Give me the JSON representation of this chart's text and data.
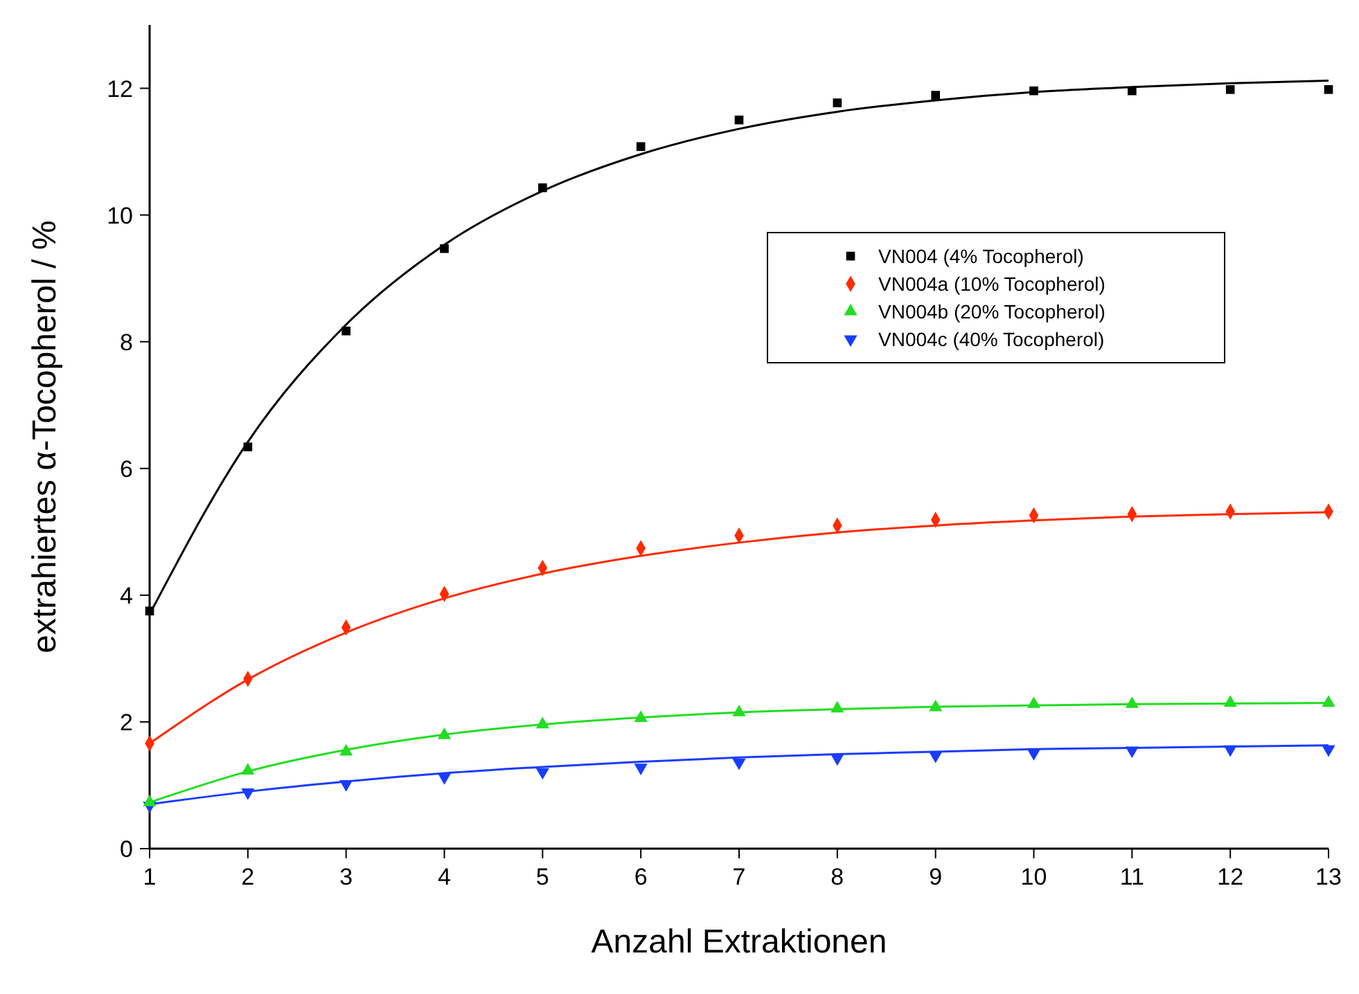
{
  "chart_data": {
    "type": "scatter",
    "xlabel": "Anzahl Extraktionen",
    "ylabel": "extrahiertes α-Tocopherol / %",
    "x": [
      1,
      2,
      3,
      4,
      5,
      6,
      7,
      8,
      9,
      10,
      11,
      12,
      13
    ],
    "xlim": [
      1,
      13
    ],
    "xticks": [
      1,
      2,
      3,
      4,
      5,
      6,
      7,
      8,
      9,
      10,
      11,
      12,
      13
    ],
    "ylim": [
      0,
      13
    ],
    "yticks": [
      0,
      2,
      4,
      6,
      8,
      10,
      12
    ],
    "grid": false,
    "legend": "top right",
    "series": [
      {
        "name": "VN004 (4% Tocopherol)",
        "color": "#000000",
        "marker": "square",
        "values": [
          3.75,
          6.34,
          8.17,
          9.47,
          10.43,
          11.08,
          11.5,
          11.77,
          11.89,
          11.96,
          11.96,
          11.98,
          11.98
        ]
      },
      {
        "name": "VN004a (10% Tocopherol)",
        "color": "#ff2a00",
        "marker": "diamond",
        "values": [
          1.66,
          2.68,
          3.49,
          4.02,
          4.43,
          4.74,
          4.94,
          5.1,
          5.19,
          5.26,
          5.28,
          5.32,
          5.32
        ]
      },
      {
        "name": "VN004b (20% Tocopherol)",
        "color": "#22dd22",
        "marker": "triangle",
        "values": [
          0.73,
          1.23,
          1.53,
          1.79,
          1.96,
          2.06,
          2.15,
          2.21,
          2.23,
          2.28,
          2.28,
          2.3,
          2.3
        ]
      },
      {
        "name": "VN004c (40% Tocopherol)",
        "color": "#1a3cff",
        "marker": "triangle-down",
        "values": [
          0.68,
          0.89,
          1.02,
          1.13,
          1.21,
          1.28,
          1.36,
          1.43,
          1.47,
          1.51,
          1.55,
          1.57,
          1.57
        ]
      },
      {
        "type": "line",
        "color": "#000000",
        "values": [
          3.7,
          6.42,
          8.27,
          9.53,
          10.38,
          10.96,
          11.36,
          11.63,
          11.81,
          11.94,
          12.02,
          12.08,
          12.12
        ]
      },
      {
        "type": "line",
        "color": "#ff2a00",
        "values": [
          1.66,
          2.67,
          3.41,
          3.95,
          4.34,
          4.62,
          4.83,
          4.99,
          5.1,
          5.18,
          5.24,
          5.28,
          5.31
        ]
      },
      {
        "type": "line",
        "color": "#22dd22",
        "values": [
          0.73,
          1.22,
          1.56,
          1.8,
          1.96,
          2.07,
          2.15,
          2.2,
          2.24,
          2.26,
          2.28,
          2.29,
          2.3
        ]
      },
      {
        "type": "line",
        "color": "#1a3cff",
        "values": [
          0.7,
          0.9,
          1.06,
          1.19,
          1.29,
          1.37,
          1.44,
          1.49,
          1.53,
          1.57,
          1.59,
          1.61,
          1.63
        ]
      }
    ]
  }
}
